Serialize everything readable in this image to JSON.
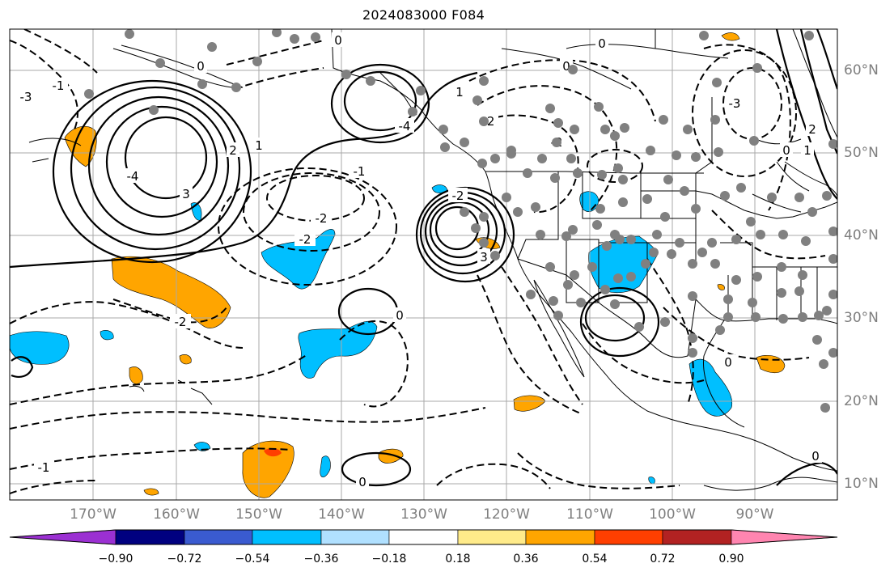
{
  "title": "2024083000 F084",
  "map": {
    "lon_labels": [
      "170°W",
      "160°W",
      "150°W",
      "140°W",
      "130°W",
      "120°W",
      "110°W",
      "100°W",
      "90°W"
    ],
    "lat_labels": [
      "60°N",
      "50°N",
      "40°N",
      "30°N",
      "20°N",
      "10°N"
    ],
    "contour_labels": [
      "0",
      "0",
      "0",
      "0",
      "0",
      "0",
      "0",
      "0",
      "0",
      "-1",
      "-1",
      "-1",
      "-2",
      "-2",
      "-2",
      "-2",
      "-2",
      "-2",
      "-3",
      "-3",
      "-4",
      "-4",
      "1",
      "1",
      "1",
      "2",
      "2",
      "3",
      "3"
    ],
    "station_marker_color": "#808080",
    "contour_color": "#000000",
    "grid_color": "#a9a9a9"
  },
  "colorbar": {
    "colors": [
      "#9b30d2",
      "#000080",
      "#3a5bd0",
      "#00bfff",
      "#b0e0ff",
      "#ffffff",
      "#ffeb8a",
      "#ffa500",
      "#ff3f00",
      "#b22222",
      "#ff85b0"
    ],
    "tick_labels": [
      "−0.90",
      "−0.72",
      "−0.54",
      "−0.36",
      "−0.18",
      "0.18",
      "0.36",
      "0.54",
      "0.72",
      "0.90"
    ]
  }
}
